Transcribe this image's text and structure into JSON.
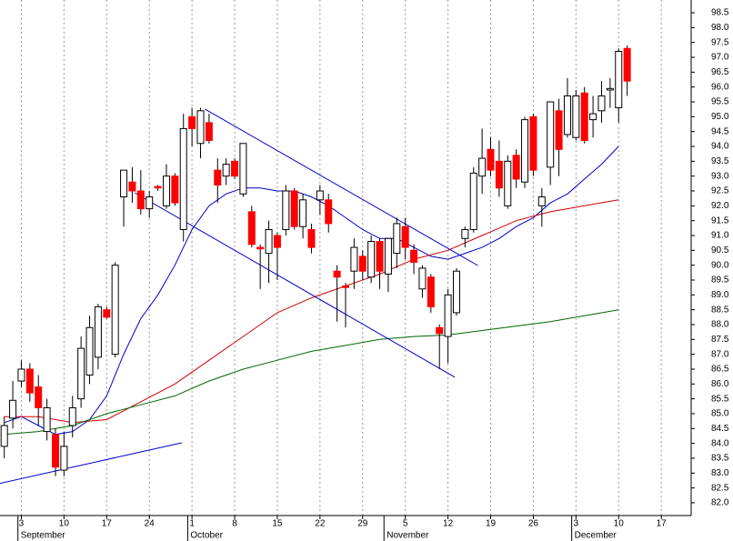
{
  "chart_data": {
    "type": "candlestick",
    "x": [
      -2,
      -1,
      0,
      1,
      2,
      3,
      4,
      5,
      6,
      7,
      8,
      9,
      10,
      11,
      12,
      13,
      14,
      15,
      16,
      17,
      18,
      19,
      20,
      21,
      22,
      23,
      24,
      25,
      26,
      27,
      28,
      29,
      30,
      31,
      32,
      33,
      34,
      35,
      36,
      37,
      38,
      39,
      40,
      41,
      42,
      43,
      44,
      45,
      46,
      47,
      48,
      49,
      50,
      51,
      52,
      53,
      54,
      55,
      56,
      57,
      58,
      59,
      60,
      61,
      62,
      63,
      64,
      65,
      66,
      67,
      68,
      69,
      70,
      71
    ],
    "open": [
      83.9,
      84.85,
      86.1,
      86.5,
      85.9,
      84.4,
      84.3,
      83.1,
      84.6,
      85.5,
      86.3,
      86.9,
      88.5,
      87.0,
      92.3,
      92.8,
      92.5,
      91.9,
      92.65,
      92.0,
      93.0,
      91.2,
      95.0,
      94.1,
      94.8,
      93.2,
      93.0,
      93.5,
      92.4,
      91.8,
      90.6,
      90.4,
      91.0,
      91.2,
      92.5,
      91.3,
      91.2,
      92.2,
      92.2,
      89.8,
      89.3,
      89.8,
      90.3,
      89.6,
      90.8,
      89.7,
      90.4,
      91.3,
      90.5,
      89.2,
      89.6,
      87.9,
      87.6,
      88.4,
      90.9,
      91.2,
      93.0,
      93.9,
      93.5,
      92.0,
      93.7,
      92.8,
      95.0,
      92.0,
      93.3,
      95.2,
      94.4,
      94.3,
      95.8,
      94.9,
      95.2,
      95.9,
      95.3,
      97.3
    ],
    "high": [
      84.9,
      86.1,
      86.8,
      86.7,
      86.3,
      85.5,
      84.5,
      84.4,
      85.6,
      87.6,
      88.3,
      88.7,
      88.6,
      90.1,
      93.2,
      93.3,
      93.2,
      92.5,
      92.7,
      93.4,
      93.1,
      95.1,
      95.3,
      95.3,
      95.1,
      93.6,
      93.6,
      93.6,
      94.1,
      92.0,
      90.7,
      91.5,
      91.1,
      92.7,
      92.6,
      92.4,
      91.4,
      92.7,
      92.4,
      90.0,
      89.4,
      90.9,
      90.5,
      91.0,
      90.9,
      90.9,
      91.6,
      91.6,
      90.7,
      90.0,
      89.7,
      88.0,
      89.2,
      89.9,
      91.3,
      93.3,
      94.6,
      94.3,
      94.2,
      93.7,
      93.9,
      95.0,
      95.1,
      92.6,
      95.5,
      95.6,
      96.3,
      95.9,
      96.0,
      95.7,
      96.2,
      96.3,
      97.3,
      97.4
    ],
    "low": [
      83.5,
      84.5,
      85.9,
      85.4,
      84.6,
      84.1,
      82.9,
      82.9,
      84.2,
      85.2,
      86.0,
      86.5,
      88.2,
      86.9,
      91.3,
      92.1,
      91.7,
      91.6,
      92.5,
      91.9,
      92.0,
      90.8,
      94.0,
      93.6,
      94.1,
      92.1,
      92.7,
      92.9,
      92.3,
      90.6,
      89.2,
      89.4,
      89.5,
      91.0,
      91.2,
      90.9,
      90.4,
      91.7,
      91.1,
      88.1,
      87.9,
      89.2,
      89.5,
      89.4,
      89.2,
      89.1,
      89.9,
      90.2,
      89.7,
      88.9,
      88.4,
      86.5,
      86.7,
      88.3,
      90.6,
      91.1,
      92.4,
      93.0,
      92.3,
      91.9,
      92.6,
      92.6,
      93.0,
      91.3,
      92.7,
      93.0,
      94.3,
      94.2,
      94.1,
      94.3,
      94.8,
      95.3,
      94.8,
      95.7
    ],
    "close": [
      84.6,
      85.45,
      86.5,
      85.7,
      85.2,
      85.2,
      83.2,
      83.9,
      85.2,
      87.2,
      87.9,
      88.6,
      88.25,
      90.0,
      93.2,
      92.5,
      91.9,
      92.3,
      92.6,
      93.0,
      92.1,
      94.6,
      94.6,
      95.2,
      94.2,
      92.7,
      93.4,
      93.0,
      94.1,
      90.7,
      90.55,
      91.2,
      90.6,
      92.5,
      91.3,
      92.2,
      90.6,
      92.5,
      91.4,
      89.6,
      89.25,
      90.6,
      89.8,
      90.8,
      89.8,
      90.9,
      91.4,
      90.6,
      90.1,
      89.9,
      88.6,
      87.7,
      89.0,
      89.8,
      91.2,
      93.1,
      93.6,
      93.2,
      92.6,
      93.5,
      92.9,
      94.9,
      93.2,
      92.3,
      95.5,
      93.9,
      95.7,
      95.7,
      94.2,
      95.1,
      95.7,
      95.95,
      97.2,
      96.2
    ],
    "up_color": "#ffffff",
    "down_color": "#ff0000",
    "lines": [
      {
        "color": "#0000cc",
        "x": [
          -2,
          0,
          2,
          4,
          6,
          8,
          10,
          12,
          14,
          16,
          18,
          20,
          22,
          24,
          26,
          28,
          30,
          32,
          34,
          36,
          38,
          40,
          42,
          44,
          46,
          48,
          50,
          52,
          54,
          56,
          58,
          60,
          62,
          64,
          66,
          68,
          70
        ],
        "values": [
          84.7,
          84.9,
          84.6,
          84.3,
          84.4,
          84.8,
          85.6,
          87.0,
          88.2,
          89.0,
          90.0,
          91.2,
          92.0,
          92.4,
          92.6,
          92.6,
          92.5,
          92.5,
          92.3,
          92.0,
          91.6,
          91.2,
          90.9,
          90.9,
          90.6,
          90.3,
          90.2,
          90.4,
          90.6,
          90.9,
          91.3,
          91.6,
          92.1,
          92.4,
          92.9,
          93.4,
          94.0
        ]
      },
      {
        "color": "#cc0000",
        "x": [
          -2,
          2,
          6,
          10,
          14,
          18,
          22,
          26,
          30,
          34,
          38,
          42,
          46,
          50,
          54,
          58,
          62,
          66,
          70
        ],
        "values": [
          84.9,
          84.9,
          84.7,
          84.8,
          85.4,
          86.0,
          86.8,
          87.6,
          88.4,
          88.9,
          89.3,
          89.7,
          90.2,
          90.5,
          91.0,
          91.5,
          91.8,
          92.0,
          92.2
        ]
      },
      {
        "color": "#006600",
        "x": [
          -2,
          2,
          6,
          10,
          14,
          18,
          22,
          26,
          30,
          34,
          38,
          42,
          46,
          50,
          54,
          58,
          62,
          66,
          70
        ],
        "values": [
          84.3,
          84.4,
          84.6,
          85.0,
          85.3,
          85.6,
          86.1,
          86.5,
          86.8,
          87.1,
          87.3,
          87.5,
          87.6,
          87.65,
          87.8,
          87.95,
          88.1,
          88.3,
          88.5
        ]
      },
      {
        "color": "#0000cc",
        "x": [
          -2.53,
          18.8
        ],
        "values": [
          82.65,
          84.02
        ]
      },
      {
        "color": "#0000cc",
        "x": [
          21.5,
          53.5
        ],
        "values": [
          95.26,
          89.99
        ]
      },
      {
        "color": "#0000cc",
        "x": [
          13.3,
          50.8
        ],
        "values": [
          92.44,
          86.23
        ]
      }
    ],
    "xlim": [
      -2.5,
      78.5
    ],
    "xticks": [
      {
        "value": 0,
        "label": "3"
      },
      {
        "value": 5,
        "label": "10"
      },
      {
        "value": 10,
        "label": "17"
      },
      {
        "value": 15,
        "label": "24"
      },
      {
        "value": 20,
        "label": "1"
      },
      {
        "value": 25,
        "label": "8"
      },
      {
        "value": 30,
        "label": "15"
      },
      {
        "value": 35,
        "label": "22"
      },
      {
        "value": 40,
        "label": "29"
      },
      {
        "value": 45,
        "label": "5"
      },
      {
        "value": 50,
        "label": "12"
      },
      {
        "value": 55,
        "label": "19"
      },
      {
        "value": 60,
        "label": "26"
      },
      {
        "value": 65,
        "label": "3"
      },
      {
        "value": 70,
        "label": "10"
      },
      {
        "value": 75,
        "label": "17"
      }
    ],
    "months": [
      {
        "value": -0.4,
        "label": "September"
      },
      {
        "value": 19.5,
        "label": "October"
      },
      {
        "value": 42.5,
        "label": "November"
      },
      {
        "value": 64.5,
        "label": "December"
      }
    ],
    "ylim": [
      81.57,
      98.93
    ],
    "yticks": [
      {
        "value": 82,
        "label": "82.0"
      },
      82.5,
      {
        "value": 83,
        "label": "83.0"
      },
      83.5,
      {
        "value": 84,
        "label": "84.0"
      },
      84.5,
      {
        "value": 85,
        "label": "85.0"
      },
      85.5,
      {
        "value": 86,
        "label": "86.0"
      },
      86.5,
      {
        "value": 87,
        "label": "87.0"
      },
      87.5,
      {
        "value": 88,
        "label": "88.0"
      },
      88.5,
      {
        "value": 89,
        "label": "89.0"
      },
      89.5,
      {
        "value": 90,
        "label": "90.0"
      },
      90.5,
      {
        "value": 91,
        "label": "91.0"
      },
      91.5,
      {
        "value": 92,
        "label": "92.0"
      },
      92.5,
      {
        "value": 93,
        "label": "93.0"
      },
      93.5,
      {
        "value": 94,
        "label": "94.0"
      },
      94.5,
      {
        "value": 95,
        "label": "95.0"
      },
      95.5,
      {
        "value": 96,
        "label": "96.0"
      },
      96.5,
      {
        "value": 97,
        "label": "97.0"
      },
      97.5,
      {
        "value": 98,
        "label": "98.0"
      },
      98.5
    ],
    "grid": true
  }
}
